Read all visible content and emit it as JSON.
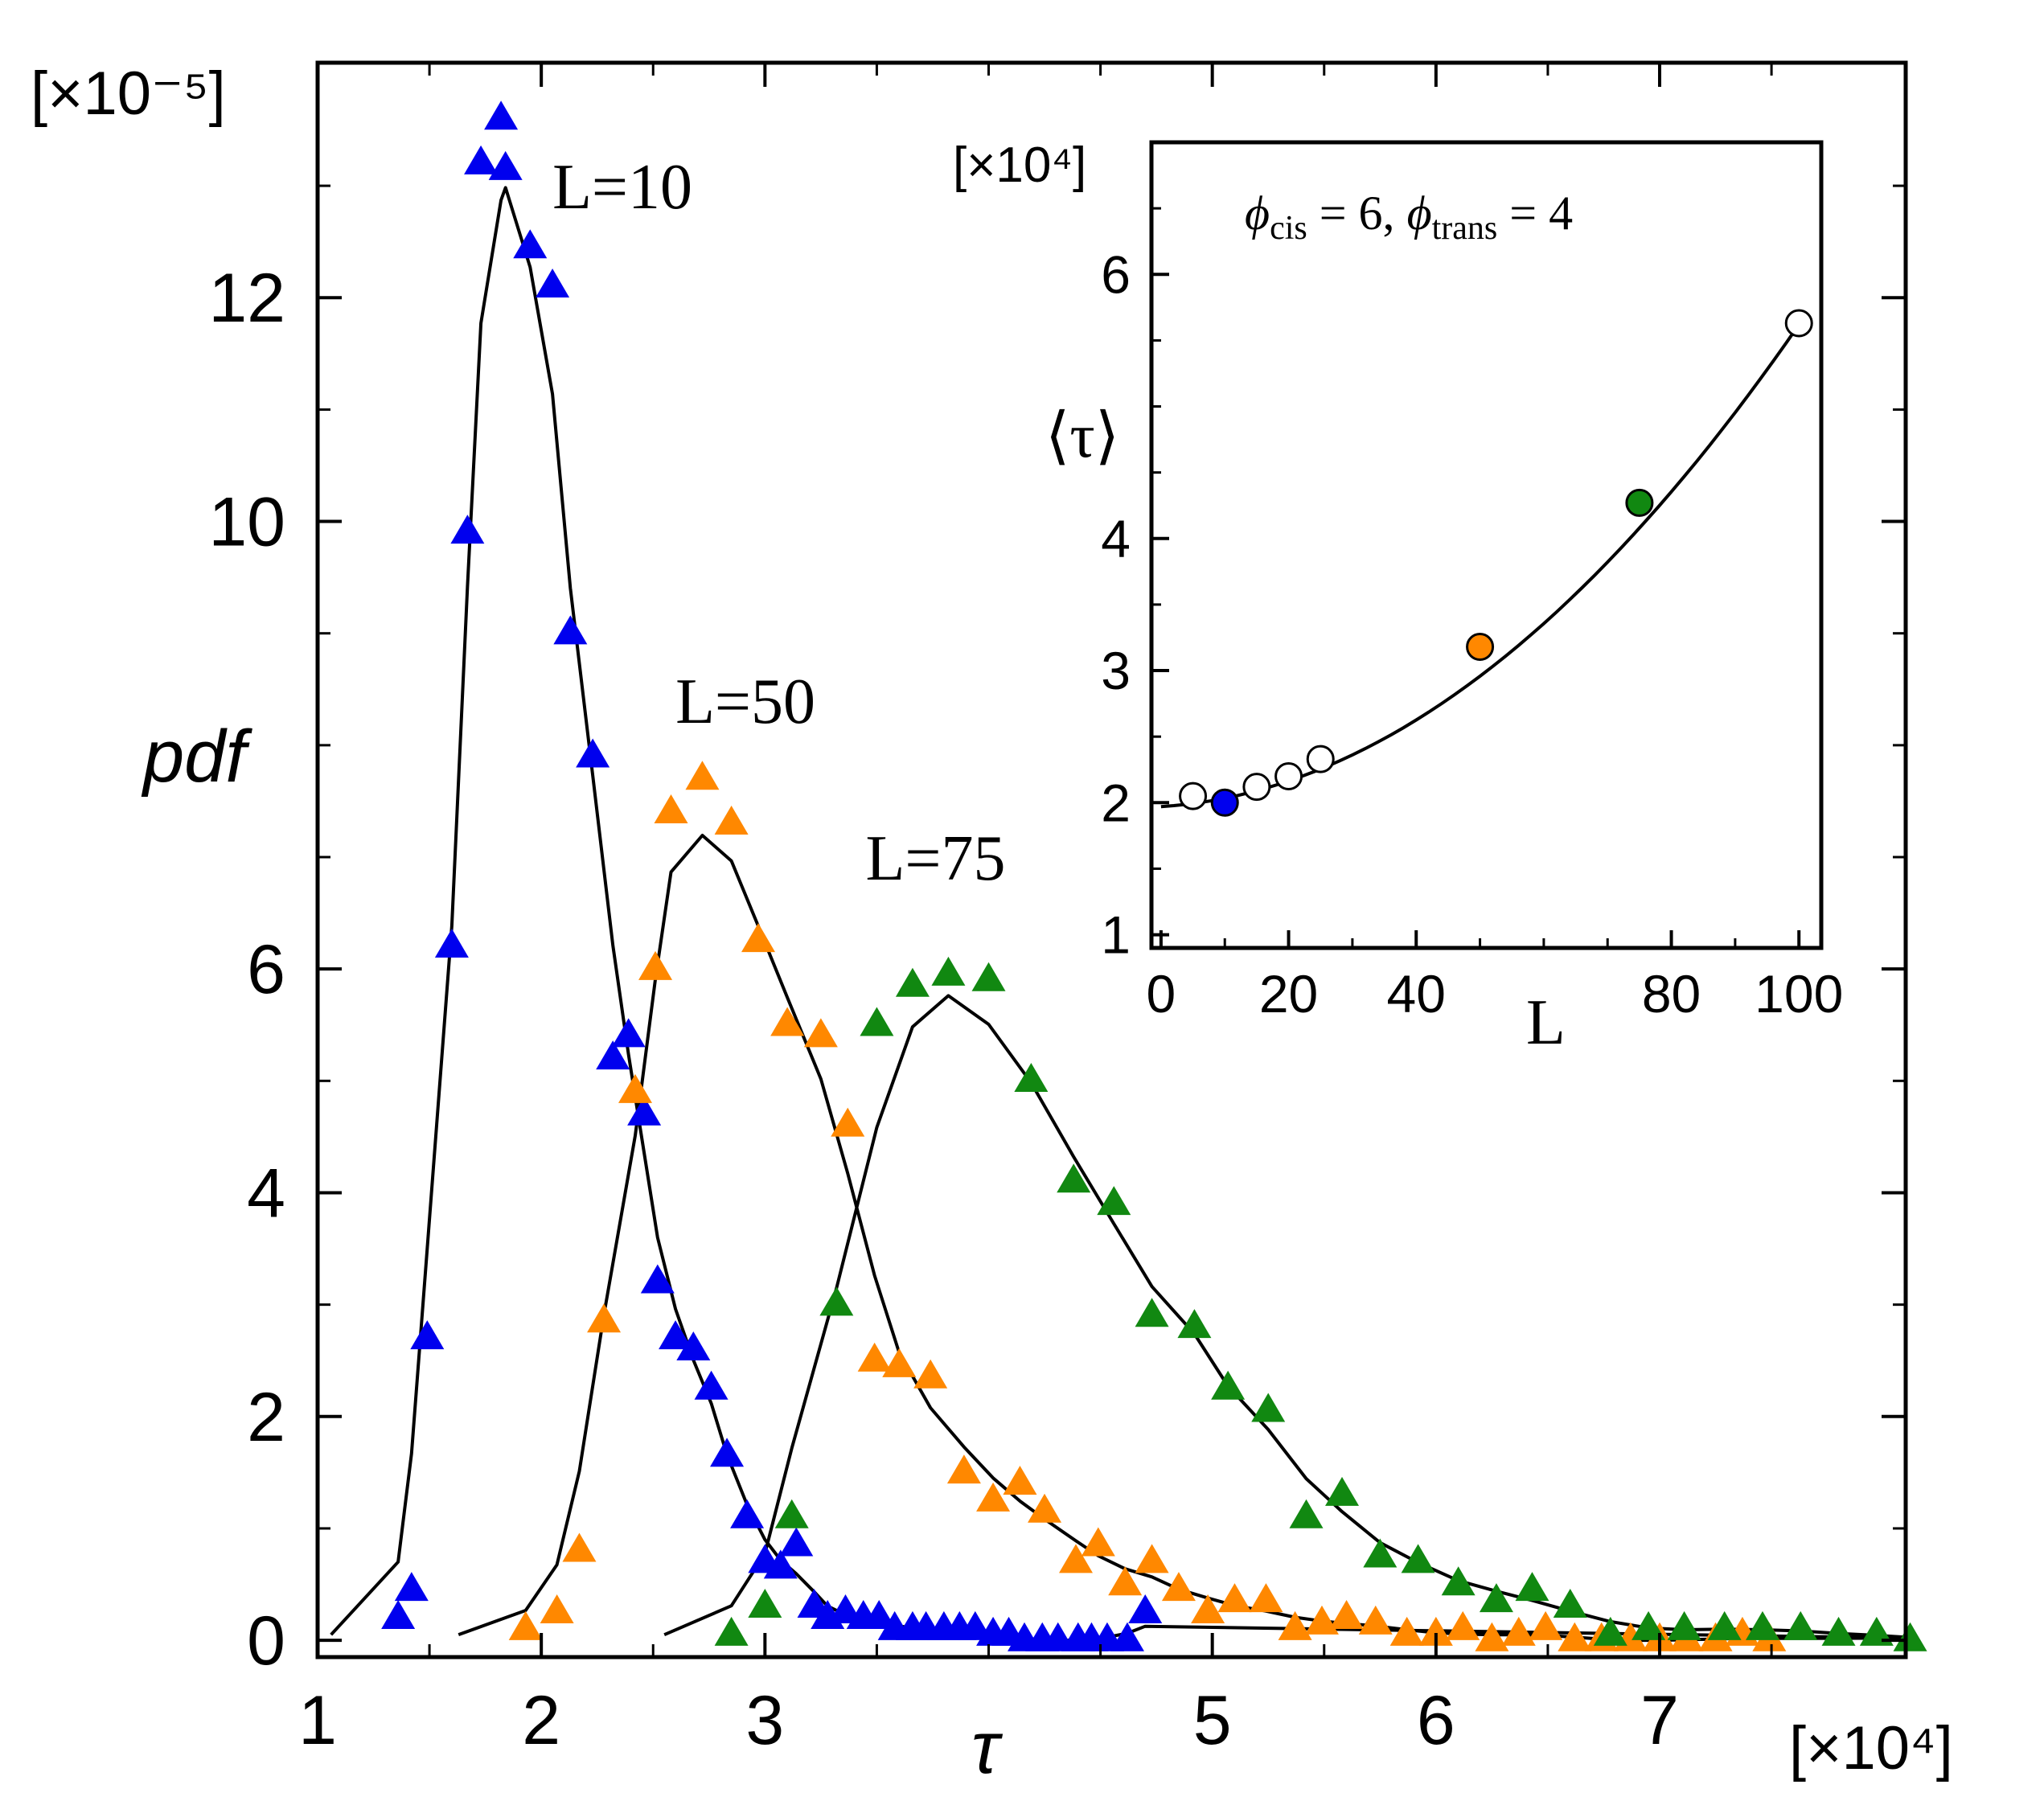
{
  "chart_data": [
    {
      "type": "scatter",
      "role": "main",
      "xlabel": "τ",
      "ylabel": "pdf",
      "x_multiplier": "[×10⁴]",
      "y_multiplier": "[×10⁻⁵]",
      "xlim": [
        1,
        8.1
      ],
      "ylim": [
        -0.15,
        14.1
      ],
      "x_ticks": [
        1,
        2,
        3,
        5,
        6,
        7
      ],
      "x_tick_labels": [
        "1",
        "2",
        "3",
        "5",
        "6",
        "7"
      ],
      "x_minor_ticks": [
        1.5,
        2.5,
        3.5,
        4,
        4.5,
        5.5,
        6.5,
        7.5
      ],
      "y_ticks": [
        0,
        2,
        4,
        6,
        10,
        12
      ],
      "y_tick_labels": [
        "0",
        "2",
        "4",
        "6",
        "10",
        "12"
      ],
      "y_minor_ticks": [
        1,
        3,
        5,
        7,
        8,
        9,
        11,
        13
      ],
      "series": [
        {
          "name": "L=10",
          "color": "#0000ee",
          "marker": "triangle",
          "x": [
            1.36,
            1.42,
            1.49,
            1.6,
            1.67,
            1.73,
            1.82,
            1.84,
            1.95,
            2.05,
            2.13,
            2.23,
            2.32,
            2.39,
            2.46,
            2.52,
            2.6,
            2.68,
            2.76,
            2.83,
            2.92,
            3.0,
            3.07,
            3.14,
            3.22,
            3.28,
            3.36,
            3.44,
            3.51,
            3.58,
            3.66,
            3.72,
            3.8,
            3.87,
            3.94,
            4.02,
            4.09,
            4.16,
            4.24,
            4.31,
            4.4,
            4.46,
            4.53,
            4.62,
            4.7
          ],
          "y": [
            0.2,
            0.45,
            2.7,
            6.2,
            9.9,
            13.2,
            13.6,
            13.15,
            12.45,
            12.1,
            9.0,
            7.9,
            5.2,
            5.4,
            4.7,
            3.2,
            2.7,
            2.6,
            2.25,
            1.65,
            1.1,
            0.7,
            0.65,
            0.85,
            0.3,
            0.2,
            0.25,
            0.2,
            0.2,
            0.1,
            0.1,
            0.1,
            0.1,
            0.1,
            0.1,
            0.05,
            0.05,
            0.0,
            0.0,
            0.0,
            0.0,
            0.0,
            0.0,
            0.0,
            0.25
          ]
        },
        {
          "name": "L=50",
          "color": "#ff8800",
          "marker": "triangle",
          "x": [
            1.93,
            2.07,
            2.17,
            2.28,
            2.42,
            2.51,
            2.58,
            2.72,
            2.85,
            2.97,
            3.1,
            3.25,
            3.37,
            3.49,
            3.6,
            3.74,
            3.89,
            4.02,
            4.14,
            4.25,
            4.39,
            4.49,
            4.61,
            4.73,
            4.85,
            4.98,
            5.1,
            5.24,
            5.37,
            5.49,
            5.6,
            5.73,
            5.87,
            6.0,
            6.12,
            6.25,
            6.37,
            6.49,
            6.62,
            6.74,
            6.87,
            7.0,
            7.12,
            7.25,
            7.37,
            7.49
          ],
          "y": [
            0.1,
            0.25,
            0.8,
            2.85,
            4.9,
            6.0,
            7.4,
            7.7,
            7.3,
            6.25,
            5.5,
            5.4,
            4.6,
            2.5,
            2.45,
            2.35,
            1.5,
            1.25,
            1.4,
            1.15,
            0.7,
            0.85,
            0.5,
            0.7,
            0.45,
            0.25,
            0.35,
            0.35,
            0.1,
            0.15,
            0.2,
            0.15,
            0.05,
            0.05,
            0.1,
            0.0,
            0.05,
            0.1,
            0.0,
            0.0,
            0.0,
            0.0,
            0.0,
            0.0,
            0.05,
            0.0
          ]
        },
        {
          "name": "L=75",
          "color": "#118811",
          "marker": "triangle",
          "x": [
            2.85,
            3.0,
            3.12,
            3.32,
            3.5,
            3.66,
            3.82,
            4.0,
            4.19,
            4.38,
            4.56,
            4.73,
            4.92,
            5.07,
            5.25,
            5.42,
            5.58,
            5.75,
            5.92,
            6.1,
            6.27,
            6.43,
            6.6,
            6.78,
            6.95,
            7.11,
            7.29,
            7.46,
            7.63,
            7.8,
            7.97,
            8.12
          ],
          "y": [
            0.05,
            0.3,
            1.1,
            3.0,
            5.5,
            5.85,
            5.95,
            5.9,
            5.0,
            4.1,
            3.9,
            2.9,
            2.8,
            2.25,
            2.05,
            1.1,
            1.3,
            0.75,
            0.7,
            0.5,
            0.35,
            0.45,
            0.3,
            0.05,
            0.1,
            0.1,
            0.1,
            0.1,
            0.1,
            0.05,
            0.05,
            0.0
          ]
        }
      ],
      "annotations": [
        {
          "text": "L=10",
          "x": 2.05,
          "y": 12.8
        },
        {
          "text": "L=50",
          "x": 2.6,
          "y": 8.2
        },
        {
          "text": "L=75",
          "x": 3.45,
          "y": 6.8
        }
      ]
    },
    {
      "type": "scatter",
      "role": "inset",
      "xlabel": "L",
      "ylabel": "⟨τ⟩",
      "y_multiplier": "[×10⁴]",
      "title": "ϕcis = 6, ϕtrans = 4",
      "title_parts": {
        "phi": "ϕ",
        "cis_sub": "cis",
        "mid": " = 6, ",
        "trans_sub": "trans",
        "end": " = 4"
      },
      "xlim": [
        -1.5,
        103.5
      ],
      "ylim": [
        0.9,
        7.0
      ],
      "x_ticks": [
        0,
        20,
        40,
        80,
        100
      ],
      "x_tick_labels": [
        "0",
        "20",
        "40",
        "80",
        "100"
      ],
      "x_minor_ticks": [
        10,
        30,
        50,
        60,
        70,
        90
      ],
      "y_ticks": [
        1,
        2,
        3,
        4,
        6
      ],
      "y_tick_labels": [
        "1",
        "2",
        "3",
        "4",
        "6"
      ],
      "y_minor_ticks": [
        1.5,
        2.5,
        3.5,
        4.5,
        5,
        5.5,
        6.5
      ],
      "points": [
        {
          "L": 5,
          "tau": 2.05,
          "color": "#ffffff"
        },
        {
          "L": 10,
          "tau": 2.0,
          "color": "#0000ee"
        },
        {
          "L": 15,
          "tau": 2.12,
          "color": "#ffffff"
        },
        {
          "L": 20,
          "tau": 2.2,
          "color": "#ffffff"
        },
        {
          "L": 25,
          "tau": 2.33,
          "color": "#ffffff"
        },
        {
          "L": 50,
          "tau": 3.18,
          "color": "#ff8800"
        },
        {
          "L": 75,
          "tau": 4.27,
          "color": "#118811"
        },
        {
          "L": 100,
          "tau": 5.63,
          "color": "#ffffff"
        }
      ]
    }
  ]
}
